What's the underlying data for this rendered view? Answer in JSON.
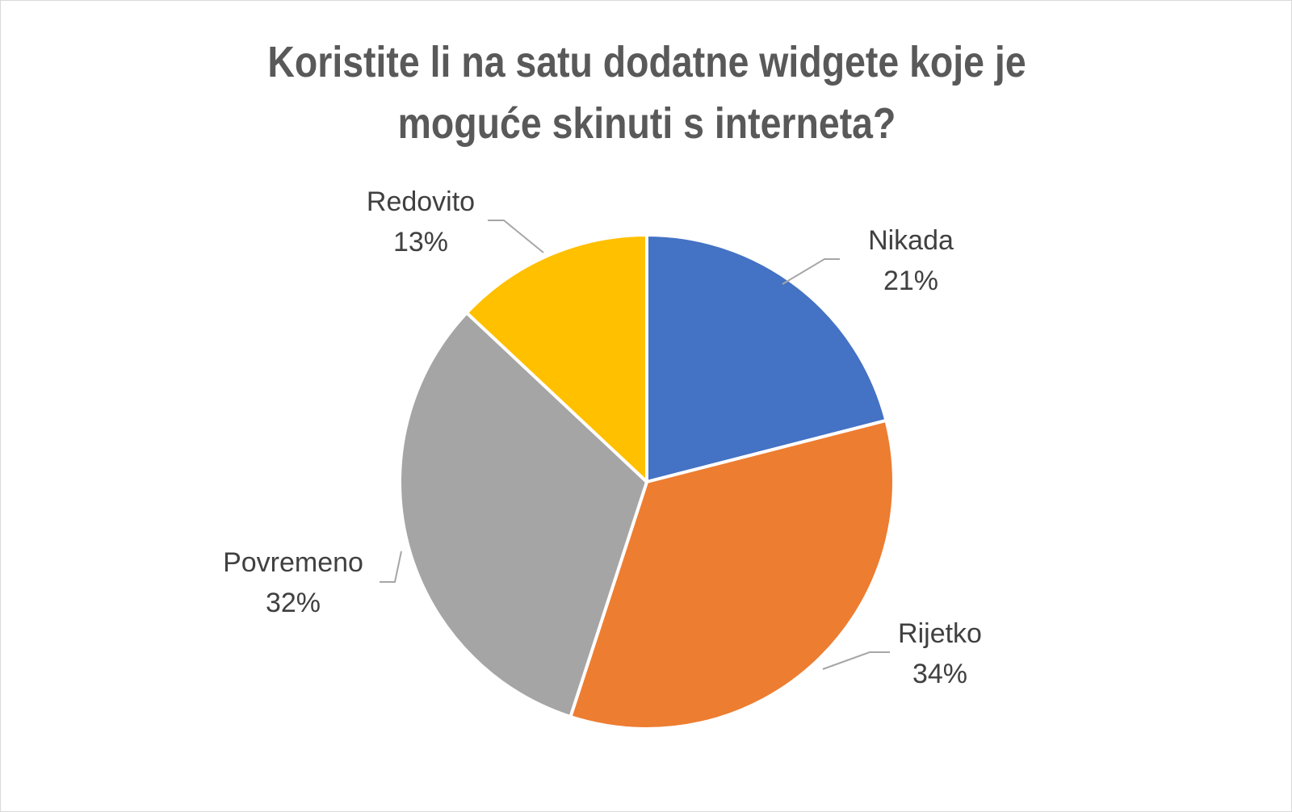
{
  "chart_data": {
    "type": "pie",
    "title": "Koristite li na satu dodatne widgete koje je moguće skinuti s interneta?",
    "slices": [
      {
        "name": "Nikada",
        "value": 21,
        "label": "21%",
        "color": "#4472c4"
      },
      {
        "name": "Rijetko",
        "value": 34,
        "label": "34%",
        "color": "#ed7d31"
      },
      {
        "name": "Povremeno",
        "value": 32,
        "label": "32%",
        "color": "#a5a5a5"
      },
      {
        "name": "Redovito",
        "value": 13,
        "label": "13%",
        "color": "#ffc000"
      }
    ],
    "start": "top",
    "direction": "clockwise",
    "legend": "none"
  }
}
